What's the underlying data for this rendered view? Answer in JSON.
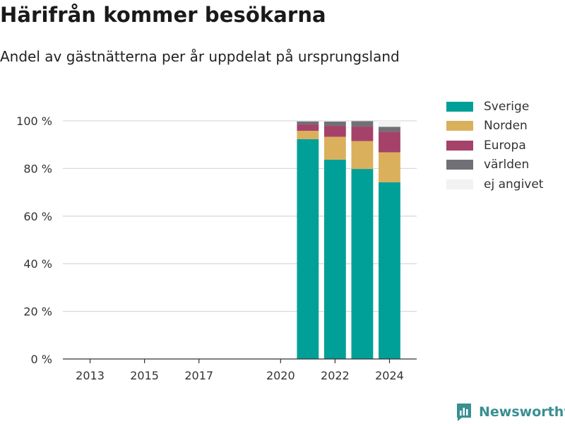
{
  "header": {
    "title": "Härifrån kommer besökarna",
    "subtitle": "Andel av gästnätterna per år uppdelat på ursprungsland"
  },
  "brand": {
    "name": "Newsworthy",
    "icon": "newsworthy-logo-icon",
    "color": "#3a8f91"
  },
  "chart_data": {
    "type": "bar",
    "stacked": true,
    "x_ticks": [
      "2013",
      "2015",
      "2017",
      "2020",
      "2022",
      "2024"
    ],
    "y_ticks": [
      "0 %",
      "20 %",
      "40 %",
      "60 %",
      "80 %",
      "100 %"
    ],
    "ylim": [
      0,
      100
    ],
    "xlim": [
      2012,
      2025
    ],
    "grid": true,
    "legend_position": "right",
    "categories": [
      2021,
      2022,
      2023,
      2024
    ],
    "series": [
      {
        "name": "Sverige",
        "color": "#00a098",
        "values": [
          92.3,
          83.7,
          79.8,
          74.2
        ]
      },
      {
        "name": "Norden",
        "color": "#dbb05c",
        "values": [
          3.5,
          9.6,
          11.7,
          12.6
        ]
      },
      {
        "name": "Europa",
        "color": "#a5426a",
        "values": [
          2.7,
          4.6,
          6.1,
          8.7
        ]
      },
      {
        "name": "världen",
        "color": "#707076",
        "values": [
          1.3,
          1.8,
          2.3,
          2.0
        ]
      },
      {
        "name": "ej angivet",
        "color": "#f2f2f2",
        "values": [
          0.2,
          0.3,
          0.1,
          2.5
        ]
      }
    ]
  }
}
